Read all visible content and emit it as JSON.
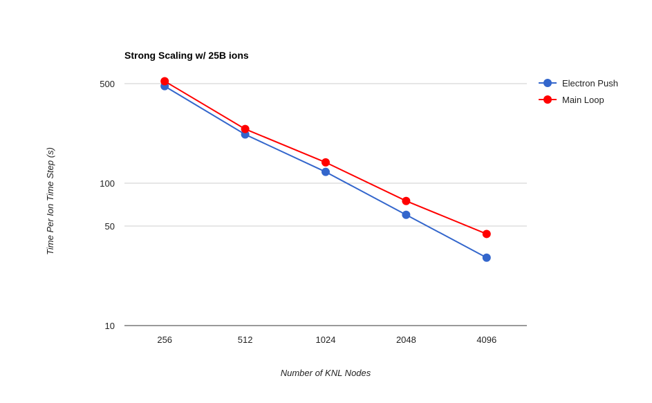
{
  "chart_data": {
    "type": "line",
    "title": "Strong Scaling w/ 25B ions",
    "xlabel": "Number of KNL Nodes",
    "ylabel": "Time Per Ion Time Step (s)",
    "categories": [
      "256",
      "512",
      "1024",
      "2048",
      "4096"
    ],
    "y_scale": "log",
    "ylim": [
      10,
      500
    ],
    "y_ticks": [
      10,
      50,
      100,
      500
    ],
    "y_tick_labels": [
      "10",
      "50",
      "100",
      "500"
    ],
    "grid": true,
    "legend_position": "right",
    "series": [
      {
        "name": "Electron Push",
        "color": "#3366cc",
        "values": [
          480,
          220,
          120,
          60,
          30
        ]
      },
      {
        "name": "Main Loop",
        "color": "#ff0000",
        "values": [
          520,
          240,
          140,
          75,
          44
        ]
      }
    ]
  }
}
